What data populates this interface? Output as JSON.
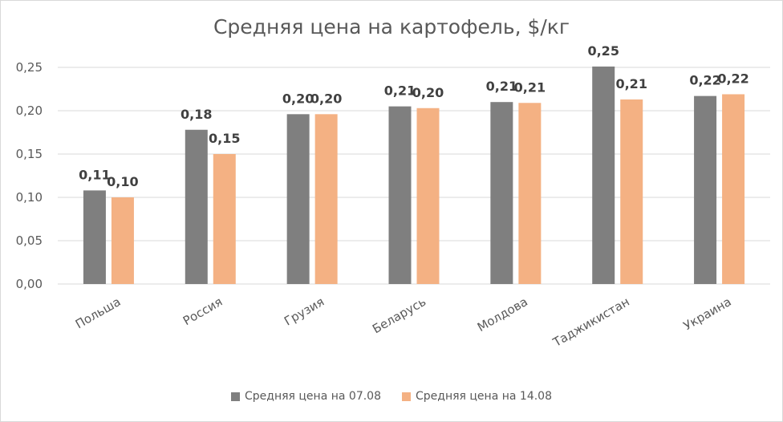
{
  "chart_data": {
    "type": "bar",
    "title": "Средняя цена на картофель, $/кг",
    "xlabel": "",
    "ylabel": "",
    "categories": [
      "Польша",
      "Россия",
      "Грузия",
      "Беларусь",
      "Молдова",
      "Таджикистан",
      "Украина"
    ],
    "series": [
      {
        "name": "Средняя цена на 07.08",
        "color": "#7f7f7f",
        "values": [
          0.108,
          0.178,
          0.196,
          0.205,
          0.21,
          0.251,
          0.217
        ],
        "labels": [
          "0,11",
          "0,18",
          "0,20",
          "0,21",
          "0,21",
          "0,25",
          "0,22"
        ]
      },
      {
        "name": "Средняя цена на 14.08",
        "color": "#f4b183",
        "values": [
          0.1,
          0.15,
          0.196,
          0.203,
          0.209,
          0.213,
          0.219
        ],
        "labels": [
          "0,10",
          "0,15",
          "0,20",
          "0,20",
          "0,21",
          "0,21",
          "0,22"
        ]
      }
    ],
    "ylim": [
      0,
      0.25
    ],
    "yticks": [
      0,
      0.05,
      0.1,
      0.15,
      0.2,
      0.25
    ],
    "ytick_labels": [
      "0,00",
      "0,05",
      "0,10",
      "0,15",
      "0,20",
      "0,25"
    ],
    "grid": true,
    "legend_position": "bottom"
  }
}
